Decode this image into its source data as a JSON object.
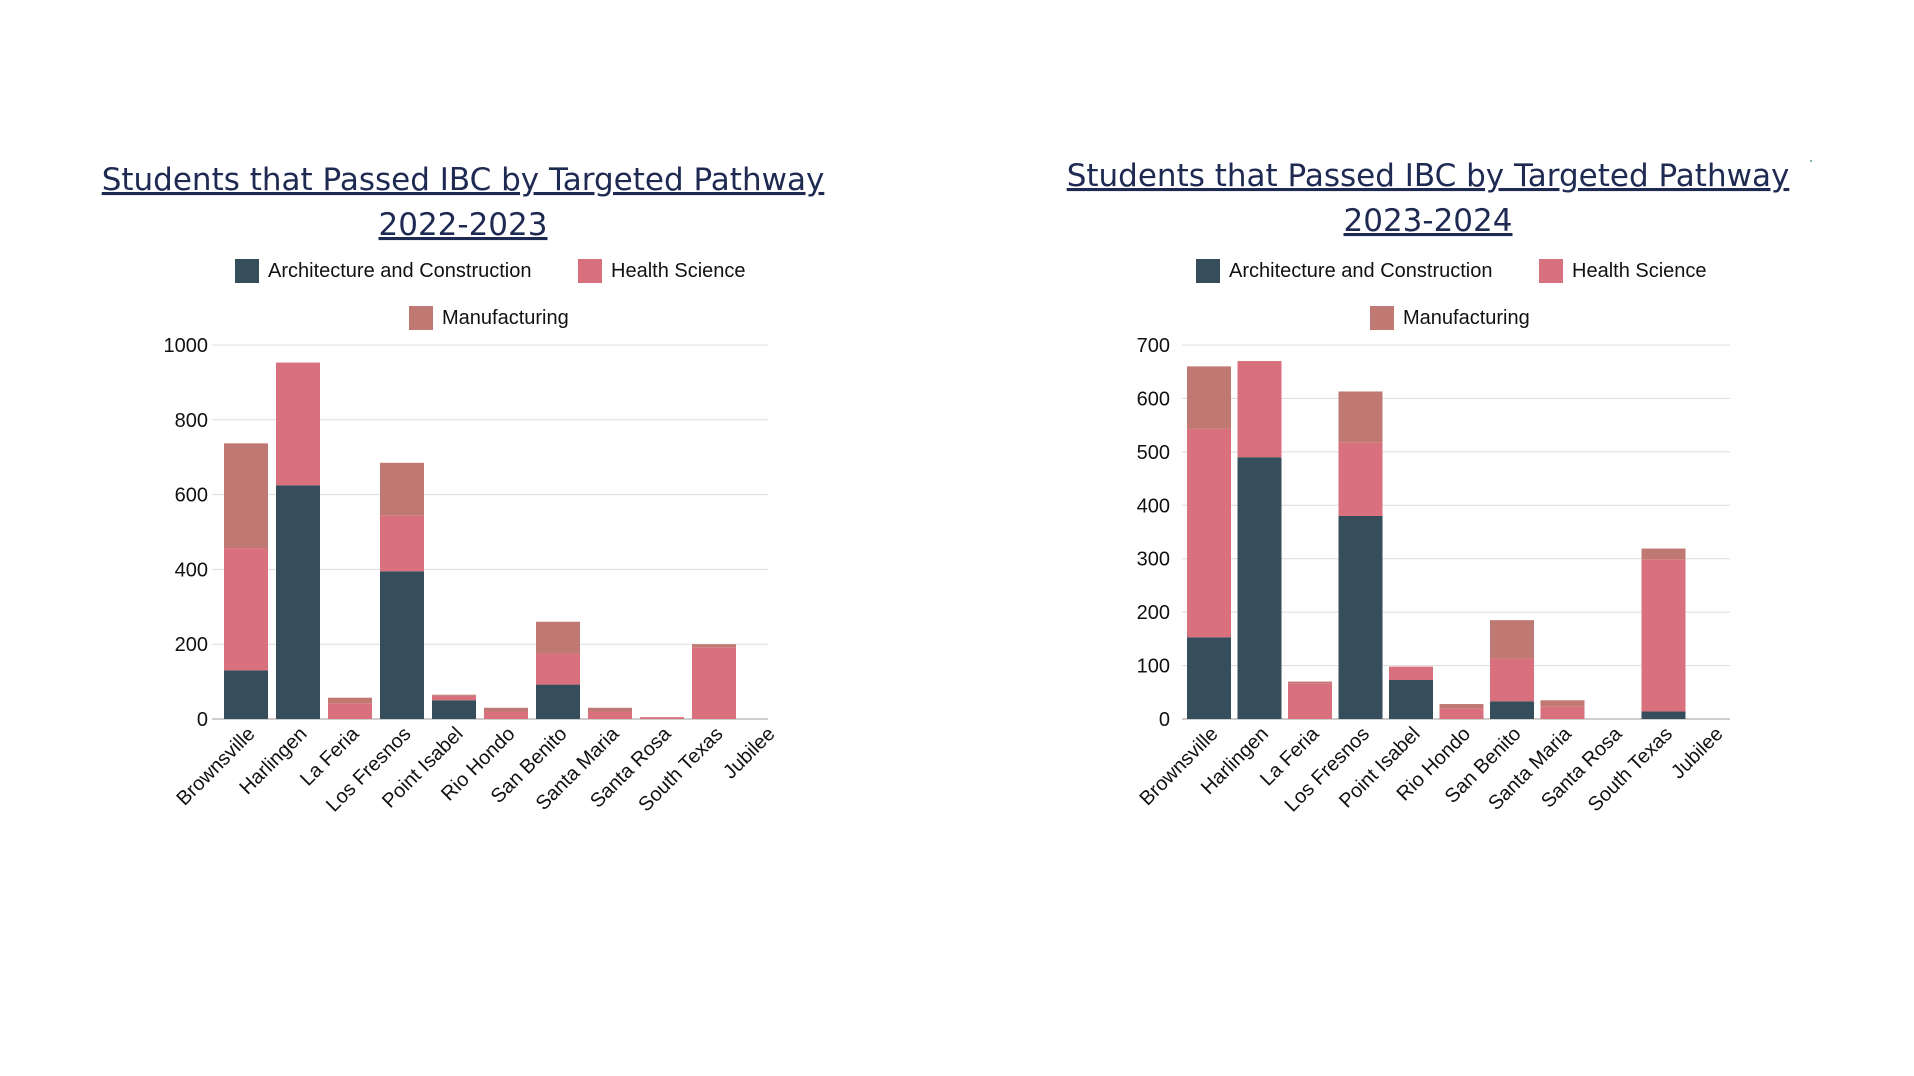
{
  "chart_data": [
    {
      "type": "bar",
      "stacked": true,
      "title_line1": "Students that Passed IBC by Targeted Pathway",
      "title_line2": "2022-2023",
      "categories": [
        "Brownsville",
        "Harlingen",
        "La Feria",
        "Los Fresnos",
        "Point Isabel",
        "Rio Hondo",
        "San Benito",
        "Santa Maria",
        "Santa Rosa",
        "South Texas",
        "Jubilee"
      ],
      "series": [
        {
          "name": "Architecture and Construction",
          "color": "#364e5c",
          "values": [
            130,
            625,
            0,
            395,
            50,
            0,
            92,
            0,
            0,
            0,
            0
          ]
        },
        {
          "name": "Health Science",
          "color": "#d9707d",
          "values": [
            327,
            328,
            42,
            150,
            12,
            20,
            83,
            20,
            5,
            192,
            0
          ]
        },
        {
          "name": "Manufacturing",
          "color": "#c07872",
          "values": [
            280,
            0,
            15,
            140,
            3,
            10,
            85,
            10,
            0,
            8,
            0
          ]
        }
      ],
      "ylim": [
        0,
        1000
      ],
      "yticks": [
        0,
        200,
        400,
        600,
        800,
        1000
      ],
      "legend_position": "top"
    },
    {
      "type": "bar",
      "stacked": true,
      "title_line1": "Students that Passed IBC by Targeted Pathway",
      "title_line2": "2023-2024",
      "categories": [
        "Brownsville",
        "Harlingen",
        "La Feria",
        "Los Fresnos",
        "Point Isabel",
        "Rio Hondo",
        "San Benito",
        "Santa Maria",
        "Santa Rosa",
        "South Texas",
        "Jubilee"
      ],
      "series": [
        {
          "name": "Architecture and Construction",
          "color": "#364e5c",
          "values": [
            153,
            490,
            0,
            380,
            73,
            0,
            33,
            0,
            0,
            14,
            0
          ]
        },
        {
          "name": "Health Science",
          "color": "#d9707d",
          "values": [
            390,
            180,
            67,
            138,
            25,
            20,
            80,
            23,
            0,
            285,
            0
          ]
        },
        {
          "name": "Manufacturing",
          "color": "#c07872",
          "values": [
            117,
            0,
            3,
            95,
            0,
            8,
            72,
            12,
            0,
            20,
            0
          ]
        }
      ],
      "ylim": [
        0,
        700
      ],
      "yticks": [
        0,
        100,
        200,
        300,
        400,
        500,
        600,
        700
      ],
      "legend_position": "top"
    }
  ]
}
